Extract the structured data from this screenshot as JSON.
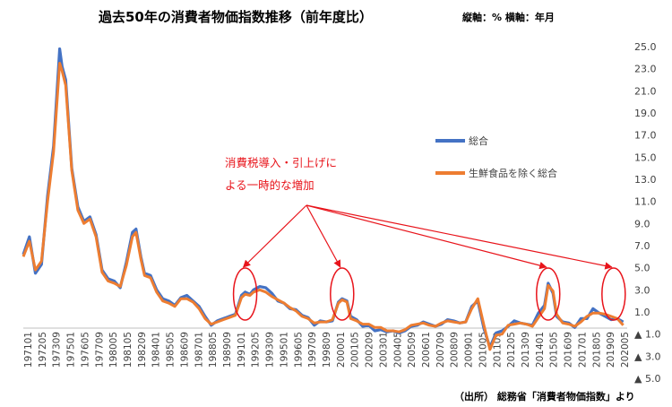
{
  "title": "過去50年の消費者物価指数推移（前年度比）",
  "subtitle": "縦軸：% 横軸：年月",
  "source": "（出所） 総務省「消費者物価指数」より",
  "colors": {
    "total": "#4472c4",
    "core": "#ed7d31",
    "annotation": "#e8141b"
  },
  "annotation": {
    "lines": [
      "消費税導入・引上げに",
      "よる一時的な増加"
    ]
  },
  "chart_data": {
    "type": "line",
    "xlabel": "年月",
    "ylabel": "%",
    "ylim": [
      -5.0,
      25.0
    ],
    "y_ticks": [
      25.0,
      23.0,
      21.0,
      19.0,
      17.0,
      15.0,
      13.0,
      11.0,
      9.0,
      7.0,
      5.0,
      3.0,
      1.0,
      -1.0,
      -3.0,
      -5.0
    ],
    "y_tick_labels": [
      "25.0",
      "23.0",
      "21.0",
      "19.0",
      "17.0",
      "15.0",
      "13.0",
      "11.0",
      "9.0",
      "7.0",
      "5.0",
      "3.0",
      "1.0",
      "▲ 1.0",
      "▲ 3.0",
      "▲ 5.0"
    ],
    "x_tick_labels": [
      "197101",
      "197205",
      "197309",
      "197501",
      "197605",
      "197709",
      "198005",
      "198105",
      "198209",
      "198401",
      "198505",
      "198609",
      "198701",
      "198805",
      "198909",
      "199101",
      "199205",
      "199309",
      "199501",
      "199605",
      "199709",
      "199809",
      "200001",
      "200105",
      "200209",
      "200301",
      "200405",
      "200509",
      "200601",
      "200709",
      "200809",
      "200901",
      "201005",
      "201109",
      "201205",
      "201309",
      "201401",
      "201505",
      "201609",
      "201701",
      "201805",
      "201909",
      "202005"
    ],
    "grid": false,
    "legend_position": "right",
    "x": [
      1971.0,
      1971.5,
      1972.0,
      1972.5,
      1973.0,
      1973.5,
      1974.0,
      1974.2,
      1974.5,
      1975.0,
      1975.5,
      1976.0,
      1976.5,
      1977.0,
      1977.5,
      1978.0,
      1978.5,
      1979.0,
      1979.5,
      1980.0,
      1980.3,
      1980.7,
      1981.0,
      1981.5,
      1982.0,
      1982.5,
      1983.0,
      1983.5,
      1984.0,
      1984.5,
      1985.0,
      1985.5,
      1986.0,
      1986.5,
      1987.0,
      1987.5,
      1988.0,
      1988.5,
      1989.0,
      1989.3,
      1989.7,
      1990.0,
      1990.5,
      1991.0,
      1991.5,
      1992.0,
      1992.5,
      1993.0,
      1993.5,
      1994.0,
      1994.5,
      1995.0,
      1995.5,
      1996.0,
      1996.5,
      1997.0,
      1997.3,
      1997.7,
      1998.0,
      1998.5,
      1999.0,
      1999.5,
      2000.0,
      2000.5,
      2001.0,
      2001.5,
      2002.0,
      2002.5,
      2003.0,
      2003.5,
      2004.0,
      2004.5,
      2005.0,
      2005.5,
      2006.0,
      2006.5,
      2007.0,
      2007.5,
      2008.0,
      2008.5,
      2009.0,
      2009.5,
      2010.0,
      2010.5,
      2011.0,
      2011.5,
      2012.0,
      2012.5,
      2013.0,
      2013.5,
      2014.0,
      2014.3,
      2014.7,
      2015.0,
      2015.5,
      2016.0,
      2016.5,
      2017.0,
      2017.5,
      2018.0,
      2018.5,
      2019.0,
      2019.5,
      2020.0,
      2020.5
    ],
    "series": [
      {
        "name": "総合",
        "values": [
          6.2,
          7.8,
          4.5,
          5.3,
          11.5,
          16.0,
          24.8,
          23.2,
          22.0,
          14.0,
          10.5,
          9.2,
          9.6,
          8.0,
          4.8,
          4.0,
          3.8,
          3.2,
          5.5,
          8.2,
          8.5,
          6.0,
          4.5,
          4.3,
          3.0,
          2.2,
          2.0,
          1.6,
          2.3,
          2.5,
          2.0,
          1.5,
          0.6,
          -0.2,
          0.2,
          0.4,
          0.6,
          0.8,
          2.5,
          2.8,
          2.6,
          3.0,
          3.3,
          3.2,
          2.7,
          2.0,
          1.8,
          1.3,
          1.2,
          0.7,
          0.5,
          -0.2,
          0.2,
          0.1,
          0.2,
          1.9,
          2.2,
          2.0,
          0.6,
          0.3,
          -0.3,
          -0.2,
          -0.7,
          -0.6,
          -0.8,
          -0.7,
          -0.9,
          -0.7,
          -0.3,
          -0.2,
          0.1,
          -0.1,
          -0.3,
          -0.1,
          0.3,
          0.2,
          0.0,
          0.1,
          1.5,
          2.0,
          -0.5,
          -2.2,
          -0.9,
          -0.7,
          -0.3,
          0.2,
          0.0,
          -0.1,
          -0.2,
          0.9,
          1.6,
          3.6,
          2.7,
          0.6,
          0.1,
          0.0,
          -0.4,
          0.4,
          0.4,
          1.3,
          0.9,
          0.6,
          0.3,
          0.4,
          0.1
        ]
      },
      {
        "name": "生鮮食品を除く総合",
        "values": [
          6.0,
          7.4,
          4.8,
          5.6,
          11.0,
          15.5,
          23.5,
          22.8,
          21.5,
          13.8,
          10.2,
          9.0,
          9.4,
          7.8,
          4.6,
          3.8,
          3.6,
          3.3,
          5.2,
          7.8,
          8.2,
          5.8,
          4.3,
          4.1,
          2.8,
          2.0,
          1.8,
          1.5,
          2.2,
          2.2,
          1.9,
          1.3,
          0.4,
          -0.1,
          0.1,
          0.3,
          0.5,
          0.7,
          2.3,
          2.6,
          2.5,
          2.8,
          3.0,
          2.8,
          2.4,
          2.1,
          1.8,
          1.4,
          1.1,
          0.6,
          0.4,
          0.0,
          0.1,
          0.1,
          0.3,
          1.8,
          2.1,
          1.9,
          0.4,
          0.2,
          -0.1,
          -0.1,
          -0.4,
          -0.4,
          -0.7,
          -0.7,
          -0.8,
          -0.6,
          -0.2,
          -0.1,
          0.0,
          -0.2,
          -0.3,
          0.0,
          0.2,
          0.1,
          0.0,
          0.1,
          1.3,
          2.2,
          -0.2,
          -2.4,
          -1.1,
          -1.0,
          -0.2,
          -0.1,
          0.0,
          -0.1,
          -0.3,
          0.5,
          1.3,
          3.4,
          2.9,
          0.8,
          0.0,
          -0.1,
          -0.3,
          0.1,
          0.6,
          0.9,
          0.9,
          0.8,
          0.6,
          0.4,
          -0.2
        ]
      }
    ],
    "highlight_periods": [
      1989.3,
      1997.3,
      2014.3,
      2019.7
    ]
  }
}
